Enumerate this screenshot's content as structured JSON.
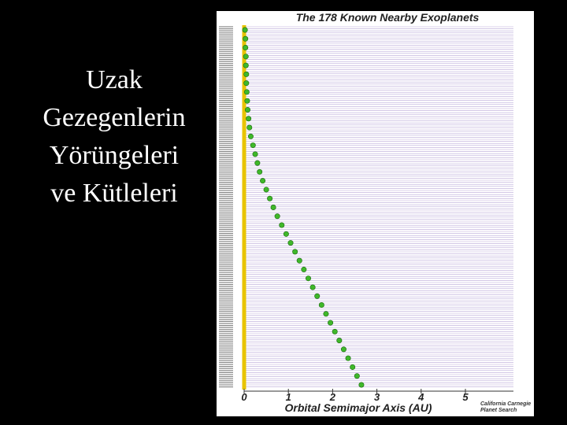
{
  "slide": {
    "title_lines": [
      "Uzak",
      "Gezegenlerin",
      "Yörüngeleri",
      "ve Kütleleri"
    ]
  },
  "chart_data": {
    "type": "scatter",
    "title": "The 178 Known Nearby Exoplanets",
    "x_label": "Orbital Semimajor Axis (AU)",
    "credit_lines": [
      "California Carnegie",
      "Planet Search"
    ],
    "xlim": [
      0,
      6
    ],
    "xticks": [
      0,
      1,
      2,
      3,
      4,
      5
    ],
    "color": "#3fb82a",
    "star_color": "#e8c400",
    "x": [
      0.02,
      0.03,
      0.03,
      0.04,
      0.04,
      0.05,
      0.05,
      0.06,
      0.07,
      0.08,
      0.1,
      0.12,
      0.15,
      0.2,
      0.25,
      0.3,
      0.35,
      0.42,
      0.5,
      0.58,
      0.66,
      0.75,
      0.85,
      0.95,
      1.05,
      1.15,
      1.25,
      1.35,
      1.45,
      1.55,
      1.65,
      1.75,
      1.85,
      1.95,
      2.05,
      2.15,
      2.25,
      2.35,
      2.45,
      2.55,
      2.65
    ]
  }
}
